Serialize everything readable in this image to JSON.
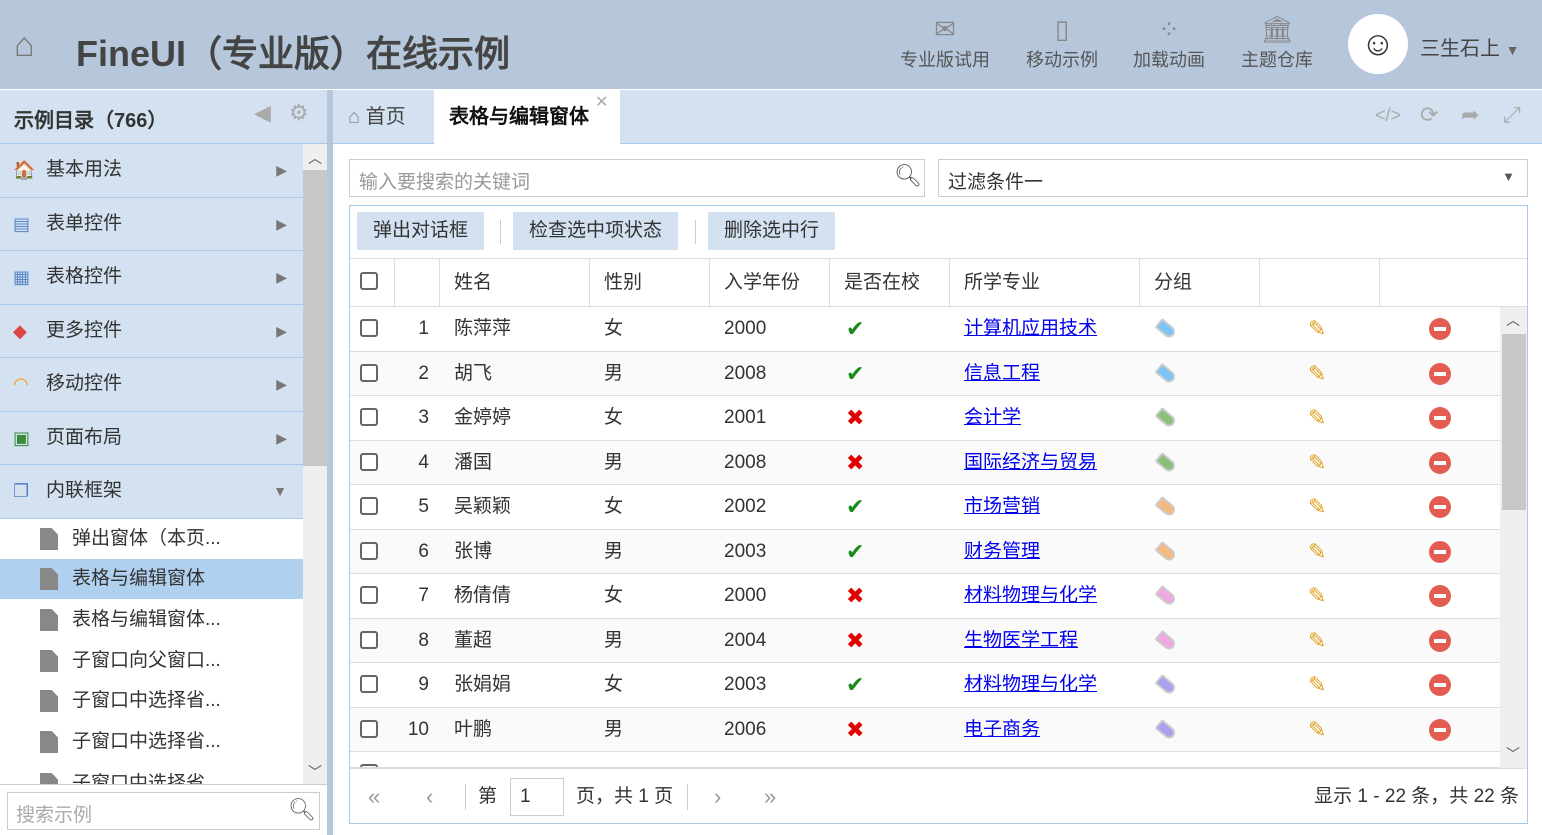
{
  "header": {
    "title": "FineUI（专业版）在线示例",
    "home_icon": "home-icon",
    "buttons": [
      {
        "label": "专业版试用",
        "icon": "envelope-icon"
      },
      {
        "label": "移动示例",
        "icon": "mobile-icon"
      },
      {
        "label": "加载动画",
        "icon": "spinner-icon"
      },
      {
        "label": "主题仓库",
        "icon": "bank-icon"
      }
    ],
    "user": "三生石上"
  },
  "sidebar": {
    "title": "示例目录（766）",
    "items": [
      {
        "label": "基本用法"
      },
      {
        "label": "表单控件"
      },
      {
        "label": "表格控件"
      },
      {
        "label": "更多控件"
      },
      {
        "label": "移动控件"
      },
      {
        "label": "页面布局"
      },
      {
        "label": "内联框架",
        "expanded": true
      }
    ],
    "subitems": [
      {
        "label": "弹出窗体（本页..."
      },
      {
        "label": "表格与编辑窗体",
        "selected": true
      },
      {
        "label": "表格与编辑窗体..."
      },
      {
        "label": "子窗口向父窗口..."
      },
      {
        "label": "子窗口中选择省..."
      },
      {
        "label": "子窗口中选择省..."
      },
      {
        "label": "子窗口中选择省..."
      }
    ],
    "search_placeholder": "搜索示例"
  },
  "tabs": [
    {
      "label": "首页"
    },
    {
      "label": "表格与编辑窗体",
      "active": true
    }
  ],
  "search": {
    "placeholder": "输入要搜索的关键词"
  },
  "filter": {
    "value": "过滤条件一"
  },
  "toolbar": {
    "dialog": "弹出对话框",
    "check": "检查选中项状态",
    "delete": "删除选中行"
  },
  "columns": [
    "姓名",
    "性别",
    "入学年份",
    "是否在校",
    "所学专业",
    "分组"
  ],
  "rows": [
    {
      "n": "1",
      "name": "陈萍萍",
      "gender": "女",
      "year": "2000",
      "enrolled": true,
      "major": "计算机应用技术",
      "tag": "#7cc4f5"
    },
    {
      "n": "2",
      "name": "胡飞",
      "gender": "男",
      "year": "2008",
      "enrolled": true,
      "major": "信息工程",
      "tag": "#7cc4f5"
    },
    {
      "n": "3",
      "name": "金婷婷",
      "gender": "女",
      "year": "2001",
      "enrolled": false,
      "major": "会计学",
      "tag": "#8cc07a"
    },
    {
      "n": "4",
      "name": "潘国",
      "gender": "男",
      "year": "2008",
      "enrolled": false,
      "major": "国际经济与贸易",
      "tag": "#8cc07a"
    },
    {
      "n": "5",
      "name": "吴颖颖",
      "gender": "女",
      "year": "2002",
      "enrolled": true,
      "major": "市场营销",
      "tag": "#f5b880"
    },
    {
      "n": "6",
      "name": "张博",
      "gender": "男",
      "year": "2003",
      "enrolled": true,
      "major": "财务管理",
      "tag": "#f5b880"
    },
    {
      "n": "7",
      "name": "杨倩倩",
      "gender": "女",
      "year": "2000",
      "enrolled": false,
      "major": "材料物理与化学",
      "tag": "#f0a8e0"
    },
    {
      "n": "8",
      "name": "董超",
      "gender": "男",
      "year": "2004",
      "enrolled": false,
      "major": "生物医学工程",
      "tag": "#f0a8e0"
    },
    {
      "n": "9",
      "name": "张娟娟",
      "gender": "女",
      "year": "2003",
      "enrolled": true,
      "major": "材料物理与化学",
      "tag": "#a8a0f0"
    },
    {
      "n": "10",
      "name": "叶鹏",
      "gender": "男",
      "year": "2006",
      "enrolled": false,
      "major": "电子商务",
      "tag": "#a8a0f0"
    }
  ],
  "pager": {
    "page_prefix": "第",
    "page": "1",
    "page_suffix": "页，共 1 页",
    "summary": "显示 1 - 22 条，共 22 条"
  },
  "colors": {
    "header_bg": "#b6c7dc",
    "panel_bg": "#d3e1f0",
    "selected": "#b0d0ef",
    "check": "#1a8a1a",
    "cross": "#e00000"
  }
}
